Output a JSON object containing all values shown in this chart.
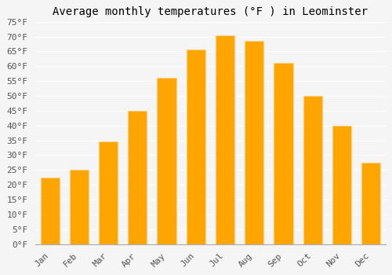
{
  "title": "Average monthly temperatures (°F ) in Leominster",
  "months": [
    "Jan",
    "Feb",
    "Mar",
    "Apr",
    "May",
    "Jun",
    "Jul",
    "Aug",
    "Sep",
    "Oct",
    "Nov",
    "Dec"
  ],
  "values": [
    22.5,
    25.0,
    34.5,
    45.0,
    56.0,
    65.5,
    70.5,
    68.5,
    61.0,
    50.0,
    40.0,
    27.5
  ],
  "bar_color_top": "#FFB733",
  "bar_color_bottom": "#FFA500",
  "ylim": [
    0,
    75
  ],
  "yticks": [
    0,
    5,
    10,
    15,
    20,
    25,
    30,
    35,
    40,
    45,
    50,
    55,
    60,
    65,
    70,
    75
  ],
  "ytick_labels": [
    "0°F",
    "5°F",
    "10°F",
    "15°F",
    "20°F",
    "25°F",
    "30°F",
    "35°F",
    "40°F",
    "45°F",
    "50°F",
    "55°F",
    "60°F",
    "65°F",
    "70°F",
    "75°F"
  ],
  "background_color": "#f5f5f5",
  "plot_bg_color": "#f5f5f5",
  "grid_color": "#ffffff",
  "title_fontsize": 10,
  "tick_fontsize": 8,
  "font_family": "monospace",
  "bar_width": 0.65
}
